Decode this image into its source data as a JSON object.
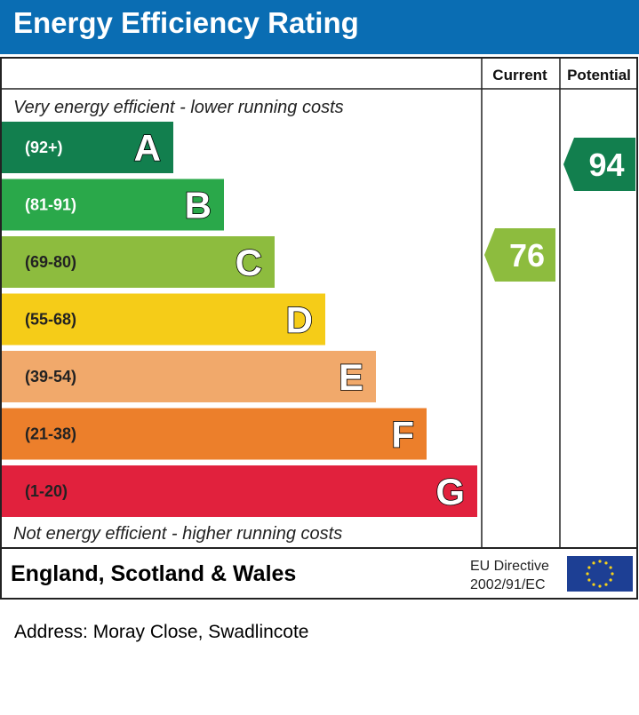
{
  "header": {
    "title": "Energy Efficiency Rating"
  },
  "columns": {
    "current_label": "Current",
    "potential_label": "Potential"
  },
  "notes": {
    "top": "Very energy efficient - lower running costs",
    "bottom": "Not energy efficient - higher running costs"
  },
  "footer": {
    "region": "England, Scotland & Wales",
    "eu_line1": "EU Directive",
    "eu_line2": "2002/91/EC"
  },
  "address": "Address: Moray Close, Swadlincote",
  "chart_data": {
    "type": "bar",
    "title": "Energy Efficiency Rating",
    "bands": [
      {
        "letter": "A",
        "range": "(92+)",
        "color": "#127f4e",
        "range_color": "#ffffff"
      },
      {
        "letter": "B",
        "range": "(81-91)",
        "color": "#2aa84a",
        "range_color": "#ffffff"
      },
      {
        "letter": "C",
        "range": "(69-80)",
        "color": "#8dbc3e",
        "range_color": "#222222"
      },
      {
        "letter": "D",
        "range": "(55-68)",
        "color": "#f5cc18",
        "range_color": "#222222"
      },
      {
        "letter": "E",
        "range": "(39-54)",
        "color": "#f1a96b",
        "range_color": "#222222"
      },
      {
        "letter": "F",
        "range": "(21-38)",
        "color": "#ec7f2b",
        "range_color": "#222222"
      },
      {
        "letter": "G",
        "range": "(1-20)",
        "color": "#e1213d",
        "range_color": "#222222"
      }
    ],
    "current": {
      "value": 76,
      "band": "C",
      "color": "#8dbc3e"
    },
    "potential": {
      "value": 94,
      "band": "A",
      "color": "#127f4e"
    }
  }
}
